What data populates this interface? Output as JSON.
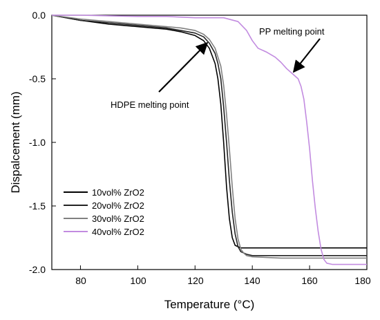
{
  "chart_data": {
    "type": "line",
    "xlabel": "Temperature (°C)",
    "ylabel": "Dispalcement (mm)",
    "xlim": [
      70,
      180
    ],
    "ylim": [
      -2.0,
      0.0
    ],
    "xticks": [
      "80",
      "100",
      "120",
      "140",
      "160",
      "180"
    ],
    "yticks": [
      "0.0",
      "-0.5",
      "-1.0",
      "-1.5",
      "-2.0"
    ],
    "legend_position": "lower-left",
    "grid": false,
    "series": [
      {
        "name": "10vol% ZrO2",
        "color": "#000000",
        "x": [
          70,
          80,
          90,
          100,
          110,
          115,
          120,
          123,
          125,
          127,
          128,
          129,
          130,
          131,
          132,
          133,
          134,
          135,
          136,
          140,
          150,
          160,
          170,
          180
        ],
        "y": [
          0.0,
          -0.04,
          -0.07,
          -0.09,
          -0.11,
          -0.13,
          -0.16,
          -0.2,
          -0.26,
          -0.38,
          -0.5,
          -0.7,
          -1.0,
          -1.35,
          -1.6,
          -1.75,
          -1.81,
          -1.82,
          -1.83,
          -1.83,
          -1.83,
          -1.83,
          -1.83,
          -1.83
        ]
      },
      {
        "name": "20vol% ZrO2",
        "color": "#222222",
        "x": [
          70,
          80,
          90,
          100,
          110,
          115,
          120,
          123,
          125,
          127,
          128,
          129,
          130,
          131,
          132,
          133,
          134,
          135,
          136,
          138,
          140,
          150,
          160,
          170,
          180
        ],
        "y": [
          0.0,
          -0.04,
          -0.06,
          -0.08,
          -0.1,
          -0.12,
          -0.14,
          -0.17,
          -0.22,
          -0.3,
          -0.38,
          -0.5,
          -0.72,
          -1.0,
          -1.3,
          -1.55,
          -1.72,
          -1.82,
          -1.86,
          -1.88,
          -1.89,
          -1.89,
          -1.89,
          -1.89,
          -1.89
        ]
      },
      {
        "name": "30vol% ZrO2",
        "color": "#808080",
        "x": [
          70,
          80,
          90,
          100,
          110,
          115,
          120,
          123,
          125,
          127,
          129,
          130,
          131,
          132,
          133,
          134,
          135,
          136,
          137,
          138,
          140,
          150,
          160,
          170,
          180
        ],
        "y": [
          0.0,
          -0.03,
          -0.05,
          -0.07,
          -0.09,
          -0.1,
          -0.12,
          -0.15,
          -0.19,
          -0.26,
          -0.4,
          -0.55,
          -0.78,
          -1.05,
          -1.35,
          -1.6,
          -1.76,
          -1.84,
          -1.87,
          -1.89,
          -1.9,
          -1.91,
          -1.91,
          -1.91,
          -1.91
        ]
      },
      {
        "name": "40vol% ZrO2",
        "color": "#c28be0",
        "x": [
          70,
          80,
          90,
          100,
          110,
          120,
          130,
          135,
          138,
          140,
          142,
          145,
          148,
          150,
          152,
          154,
          156,
          157,
          158,
          159,
          160,
          161,
          162,
          163,
          164,
          165,
          166,
          168,
          170,
          180
        ],
        "y": [
          0.0,
          0.0,
          -0.005,
          -0.01,
          -0.01,
          -0.02,
          -0.02,
          -0.05,
          -0.12,
          -0.2,
          -0.26,
          -0.29,
          -0.33,
          -0.37,
          -0.42,
          -0.46,
          -0.5,
          -0.56,
          -0.66,
          -0.84,
          -1.05,
          -1.3,
          -1.52,
          -1.7,
          -1.84,
          -1.92,
          -1.95,
          -1.96,
          -1.96,
          -1.96
        ]
      }
    ],
    "annotations": [
      {
        "text": "HDPE melting point",
        "x": 121,
        "y": -0.62,
        "arrow_to": {
          "x": 125,
          "y": -0.2
        }
      },
      {
        "text": "PP melting point",
        "x": 146,
        "y": -0.1,
        "arrow_to": {
          "x": 155,
          "y": -0.48
        }
      }
    ]
  }
}
